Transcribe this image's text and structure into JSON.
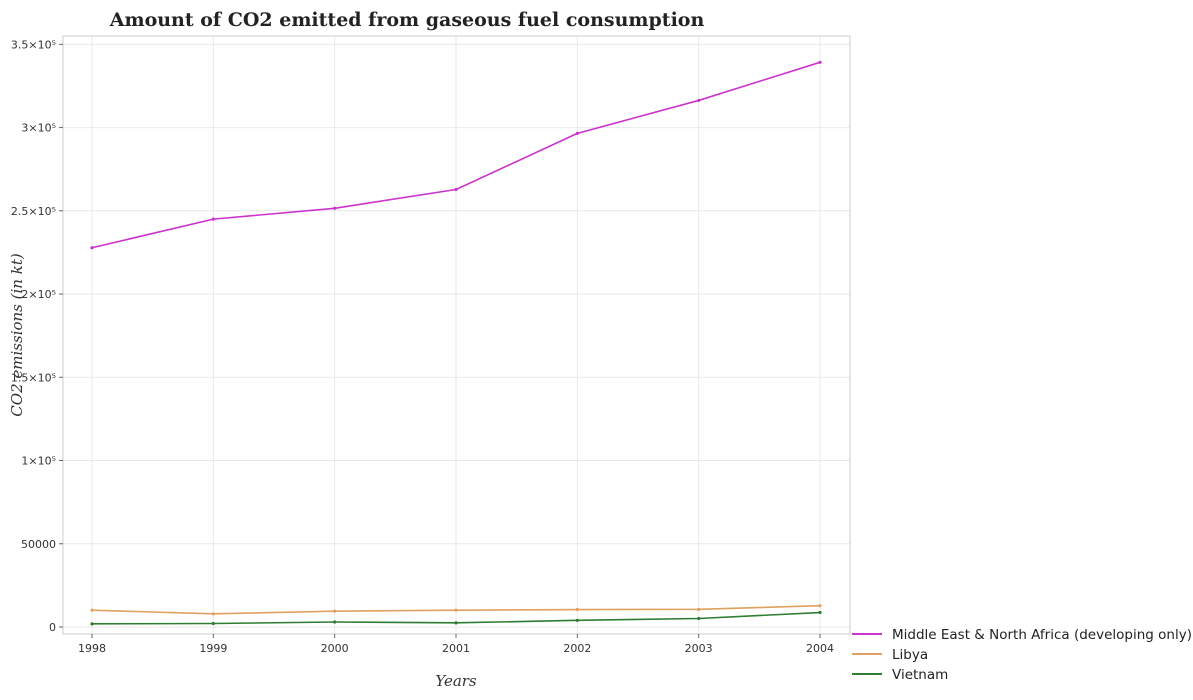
{
  "chart_data": {
    "type": "line",
    "title": "Amount of CO2 emitted from gaseous fuel consumption",
    "xlabel": "Years",
    "ylabel": "CO2 emissions (in kt)",
    "categories": [
      "1998",
      "1999",
      "2000",
      "2001",
      "2002",
      "2003",
      "2004"
    ],
    "ylim": [
      0,
      355000
    ],
    "yticks": [
      0,
      50000,
      100000,
      150000,
      200000,
      250000,
      300000,
      350000
    ],
    "ytick_labels": [
      "0",
      "50000",
      "1×10⁵",
      "1.5×10⁵",
      "2×10⁵",
      "2.5×10⁵",
      "3×10⁵",
      "3.5×10⁵"
    ],
    "grid": true,
    "legend_position": "bottom-right",
    "series": [
      {
        "name": "Middle East & North Africa (developing only)",
        "color": "#cc33cc",
        "values": [
          227800,
          245000,
          251500,
          262800,
          296500,
          316300,
          339200
        ]
      },
      {
        "name": "Libya",
        "color": "#e0a060",
        "values": [
          10100,
          7900,
          9500,
          10100,
          10500,
          10600,
          12800
        ]
      },
      {
        "name": "Vietnam",
        "color": "#2e7d32",
        "values": [
          1900,
          2100,
          3000,
          2500,
          4000,
          5100,
          8700
        ]
      }
    ]
  }
}
